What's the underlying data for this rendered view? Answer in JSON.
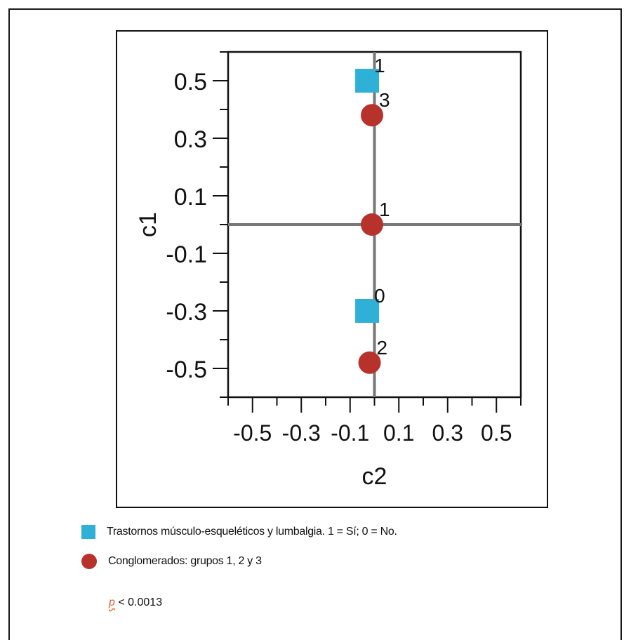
{
  "chart_data": {
    "type": "scatter",
    "xlabel": "c2",
    "ylabel": "c1",
    "xlim": [
      -0.6,
      0.6
    ],
    "ylim": [
      -0.6,
      0.6
    ],
    "x_ticks": [
      "-0.5",
      "-0.3",
      "-0.1",
      "0.1",
      "0.3",
      "0.5"
    ],
    "y_ticks": [
      "0.5",
      "0.3",
      "0.1",
      "-0.1",
      "-0.3",
      "-0.5"
    ],
    "grid": false,
    "series": [
      {
        "name": "Trastornos músculo-esqueléticos y lumbalgia. 1 = Sí; 0 = No.",
        "marker": "square",
        "color": "#2fb0d6",
        "points": [
          {
            "x": -0.03,
            "y": 0.5,
            "label": "1"
          },
          {
            "x": -0.03,
            "y": -0.3,
            "label": "0"
          }
        ]
      },
      {
        "name": "Conglomerados: grupos 1, 2 y 3",
        "marker": "circle",
        "color": "#b8322c",
        "points": [
          {
            "x": -0.01,
            "y": 0.38,
            "label": "3"
          },
          {
            "x": -0.01,
            "y": 0.0,
            "label": "1"
          },
          {
            "x": -0.02,
            "y": -0.48,
            "label": "2"
          }
        ]
      }
    ],
    "annotation": "p < 0.0013"
  },
  "legend": {
    "square_text": "Trastornos músculo-esqueléticos y lumbalgia. 1 = Sí; 0 = No.",
    "circle_text": "Conglomerados: grupos 1, 2 y 3"
  },
  "pvalue": {
    "symbol": "p",
    "rest": "< 0.0013"
  }
}
